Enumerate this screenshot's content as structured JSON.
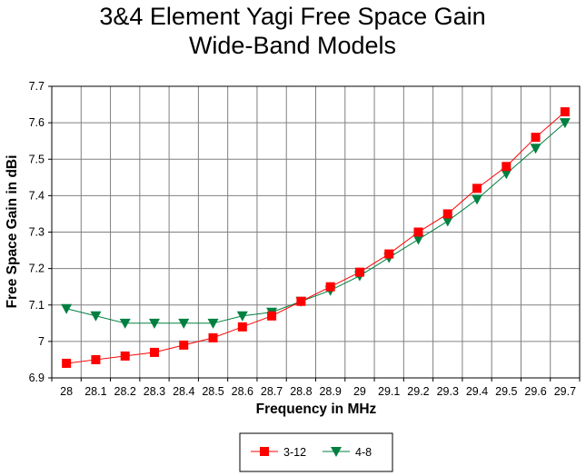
{
  "chart_data": {
    "type": "line",
    "title": "3&4 Element Yagi Free Space Gain",
    "subtitle": "Wide-Band Models",
    "xlabel": "Frequency in MHz",
    "ylabel": "Free Space Gain in dBi",
    "x": [
      "28",
      "28.1",
      "28.2",
      "28.3",
      "28.4",
      "28.5",
      "28.6",
      "28.7",
      "28.8",
      "28.9",
      "29",
      "29.1",
      "29.2",
      "29.3",
      "29.4",
      "29.5",
      "29.6",
      "29.7"
    ],
    "ylim": [
      6.9,
      7.7
    ],
    "yticks": [
      "6.9",
      "7",
      "7.1",
      "7.2",
      "7.3",
      "7.4",
      "7.5",
      "7.6",
      "7.7"
    ],
    "grid": true,
    "legend_position": "bottom-center",
    "series": [
      {
        "name": "3-12",
        "color": "#ff0000",
        "marker": "square",
        "values": [
          6.94,
          6.95,
          6.96,
          6.97,
          6.99,
          7.01,
          7.04,
          7.07,
          7.11,
          7.15,
          7.19,
          7.24,
          7.3,
          7.35,
          7.42,
          7.48,
          7.56,
          7.63
        ]
      },
      {
        "name": "4-8",
        "color": "#008040",
        "marker": "triangle-down",
        "values": [
          7.09,
          7.07,
          7.05,
          7.05,
          7.05,
          7.05,
          7.07,
          7.08,
          7.11,
          7.14,
          7.18,
          7.23,
          7.28,
          7.33,
          7.39,
          7.46,
          7.53,
          7.6
        ]
      }
    ]
  }
}
